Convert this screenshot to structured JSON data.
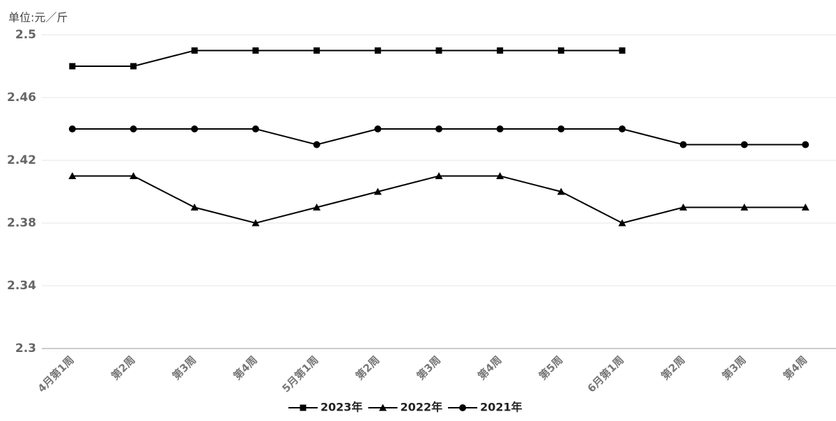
{
  "chart_data": {
    "type": "line",
    "ylabel": "单位:元／斤",
    "categories": [
      "4月第1周",
      "第2周",
      "第3周",
      "第4周",
      "5月第1周",
      "第2周",
      "第3周",
      "第4周",
      "第5周",
      "6月第1周",
      "第2周",
      "第3周",
      "第4周"
    ],
    "series": [
      {
        "name": "2023年",
        "color": "#000000",
        "marker": "square",
        "values": [
          2.48,
          2.48,
          2.49,
          2.49,
          2.49,
          2.49,
          2.49,
          2.49,
          2.49,
          2.49,
          null,
          null,
          null
        ]
      },
      {
        "name": "2022年",
        "color": "#000000",
        "marker": "triangle",
        "values": [
          2.41,
          2.41,
          2.39,
          2.38,
          2.39,
          2.4,
          2.41,
          2.41,
          2.4,
          2.38,
          2.39,
          2.39,
          2.39
        ]
      },
      {
        "name": "2021年",
        "color": "#000000",
        "marker": "circle",
        "values": [
          2.44,
          2.44,
          2.44,
          2.44,
          2.43,
          2.44,
          2.44,
          2.44,
          2.44,
          2.44,
          2.43,
          2.43,
          2.43
        ]
      }
    ],
    "ylim": [
      2.3,
      2.5
    ],
    "yticks": [
      2.3,
      2.34,
      2.38,
      2.42,
      2.46,
      2.5
    ],
    "grid": true,
    "legend": "bottom"
  }
}
